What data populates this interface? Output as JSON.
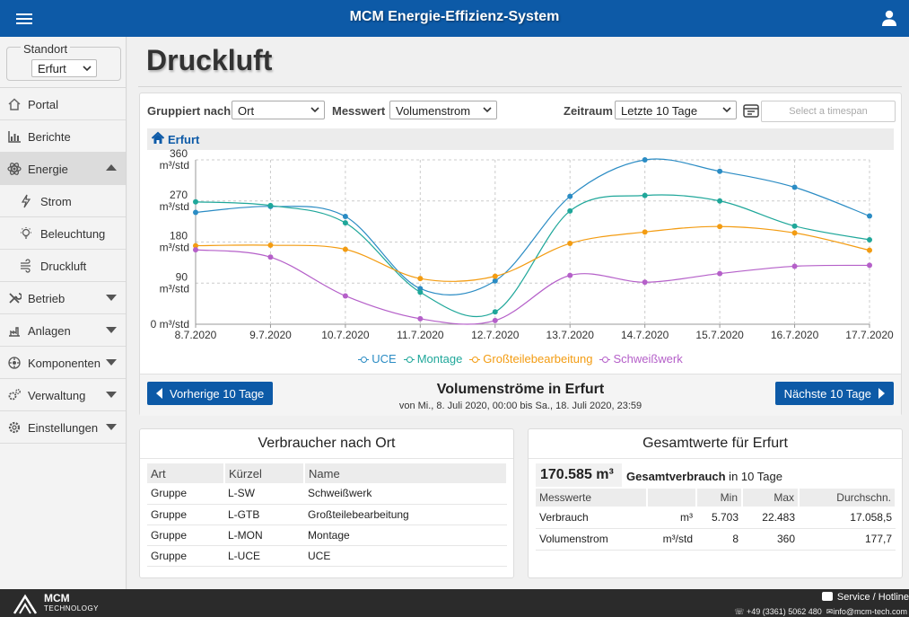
{
  "header": {
    "title": "MCM Energie-Effizienz-System",
    "menu_icon": "hamburger-icon",
    "user_icon": "user-icon"
  },
  "sidebar": {
    "standort_legend": "Standort",
    "standort_value": "Erfurt",
    "items": [
      {
        "label": "Portal",
        "icon": "home-icon"
      },
      {
        "label": "Berichte",
        "icon": "bar-chart-icon"
      },
      {
        "label": "Energie",
        "icon": "atom-icon"
      },
      {
        "label": "Strom",
        "icon": "bolt-icon"
      },
      {
        "label": "Beleuchtung",
        "icon": "bulb-icon"
      },
      {
        "label": "Druckluft",
        "icon": "wind-icon"
      },
      {
        "label": "Betrieb",
        "icon": "tools-icon"
      },
      {
        "label": "Anlagen",
        "icon": "plant-icon"
      },
      {
        "label": "Komponenten",
        "icon": "components-icon"
      },
      {
        "label": "Verwaltung",
        "icon": "cogs-icon"
      },
      {
        "label": "Einstellungen",
        "icon": "gear-icon"
      }
    ]
  },
  "page": {
    "title": "Druckluft"
  },
  "filters": {
    "group_label": "Gruppiert nach",
    "group_value": "Ort",
    "measure_label": "Messwert",
    "measure_value": "Volumenstrom",
    "period_label": "Zeitraum",
    "period_value": "Letzte 10 Tage",
    "timespan_placeholder": "Select a timespan"
  },
  "breadcrumb": {
    "location": "Erfurt"
  },
  "chart_data": {
    "type": "line",
    "x": [
      "8.7.2020",
      "9.7.2020",
      "10.7.2020",
      "11.7.2020",
      "12.7.2020",
      "13.7.2020",
      "14.7.2020",
      "15.7.2020",
      "16.7.2020",
      "17.7.2020"
    ],
    "y_ticks": [
      "0 m³/std",
      "90 m³/std",
      "180 m³/std",
      "270 m³/std",
      "360 m³/std"
    ],
    "ylim": [
      0,
      360
    ],
    "grid": true,
    "legend_position": "bottom",
    "series": [
      {
        "name": "UCE",
        "color": "#2b8cc4",
        "values": [
          245,
          258,
          236,
          78,
          95,
          280,
          360,
          335,
          300,
          237
        ]
      },
      {
        "name": "Montage",
        "color": "#1fa79a",
        "values": [
          268,
          260,
          222,
          70,
          27,
          248,
          282,
          270,
          215,
          185
        ]
      },
      {
        "name": "Großteilebearbeitung",
        "color": "#f39c12",
        "values": [
          172,
          173,
          164,
          100,
          105,
          177,
          202,
          214,
          200,
          162
        ]
      },
      {
        "name": "Schweißwerk",
        "color": "#b560c9",
        "values": [
          163,
          147,
          62,
          12,
          8,
          107,
          92,
          111,
          127,
          129
        ]
      }
    ],
    "title": "Volumenströme in Erfurt",
    "subtitle": "von Mi., 8. Juli 2020, 00:00 bis Sa., 18. Juli 2020, 23:59"
  },
  "nav_buttons": {
    "prev": "Vorherige 10 Tage",
    "next": "Nächste 10 Tage"
  },
  "verbraucher": {
    "title": "Verbraucher nach Ort",
    "columns": [
      "Art",
      "Kürzel",
      "Name"
    ],
    "rows": [
      [
        "Gruppe",
        "L-SW",
        "Schweißwerk"
      ],
      [
        "Gruppe",
        "L-GTB",
        "Großteilebearbeitung"
      ],
      [
        "Gruppe",
        "L-MON",
        "Montage"
      ],
      [
        "Gruppe",
        "L-UCE",
        "UCE"
      ]
    ]
  },
  "gesamt": {
    "title": "Gesamtwerte für Erfurt",
    "total": "170.585 m³",
    "total_label": "Gesamtverbrauch",
    "total_suffix": " in 10 Tage",
    "columns": [
      "Messwerte",
      "",
      "Min",
      "Max",
      "Durchschn."
    ],
    "rows": [
      [
        "Verbrauch",
        "m³",
        "5.703",
        "22.483",
        "17.058,5"
      ],
      [
        "Volumenstrom",
        "m³/std",
        "8",
        "360",
        "177,7"
      ]
    ]
  },
  "footer": {
    "brand": "MCM",
    "brand_sub": "TECHNOLOGY",
    "service": "Service / Hotline",
    "phone": "+49 (3361) 5062 480",
    "email": "info@mcm-tech.com"
  }
}
